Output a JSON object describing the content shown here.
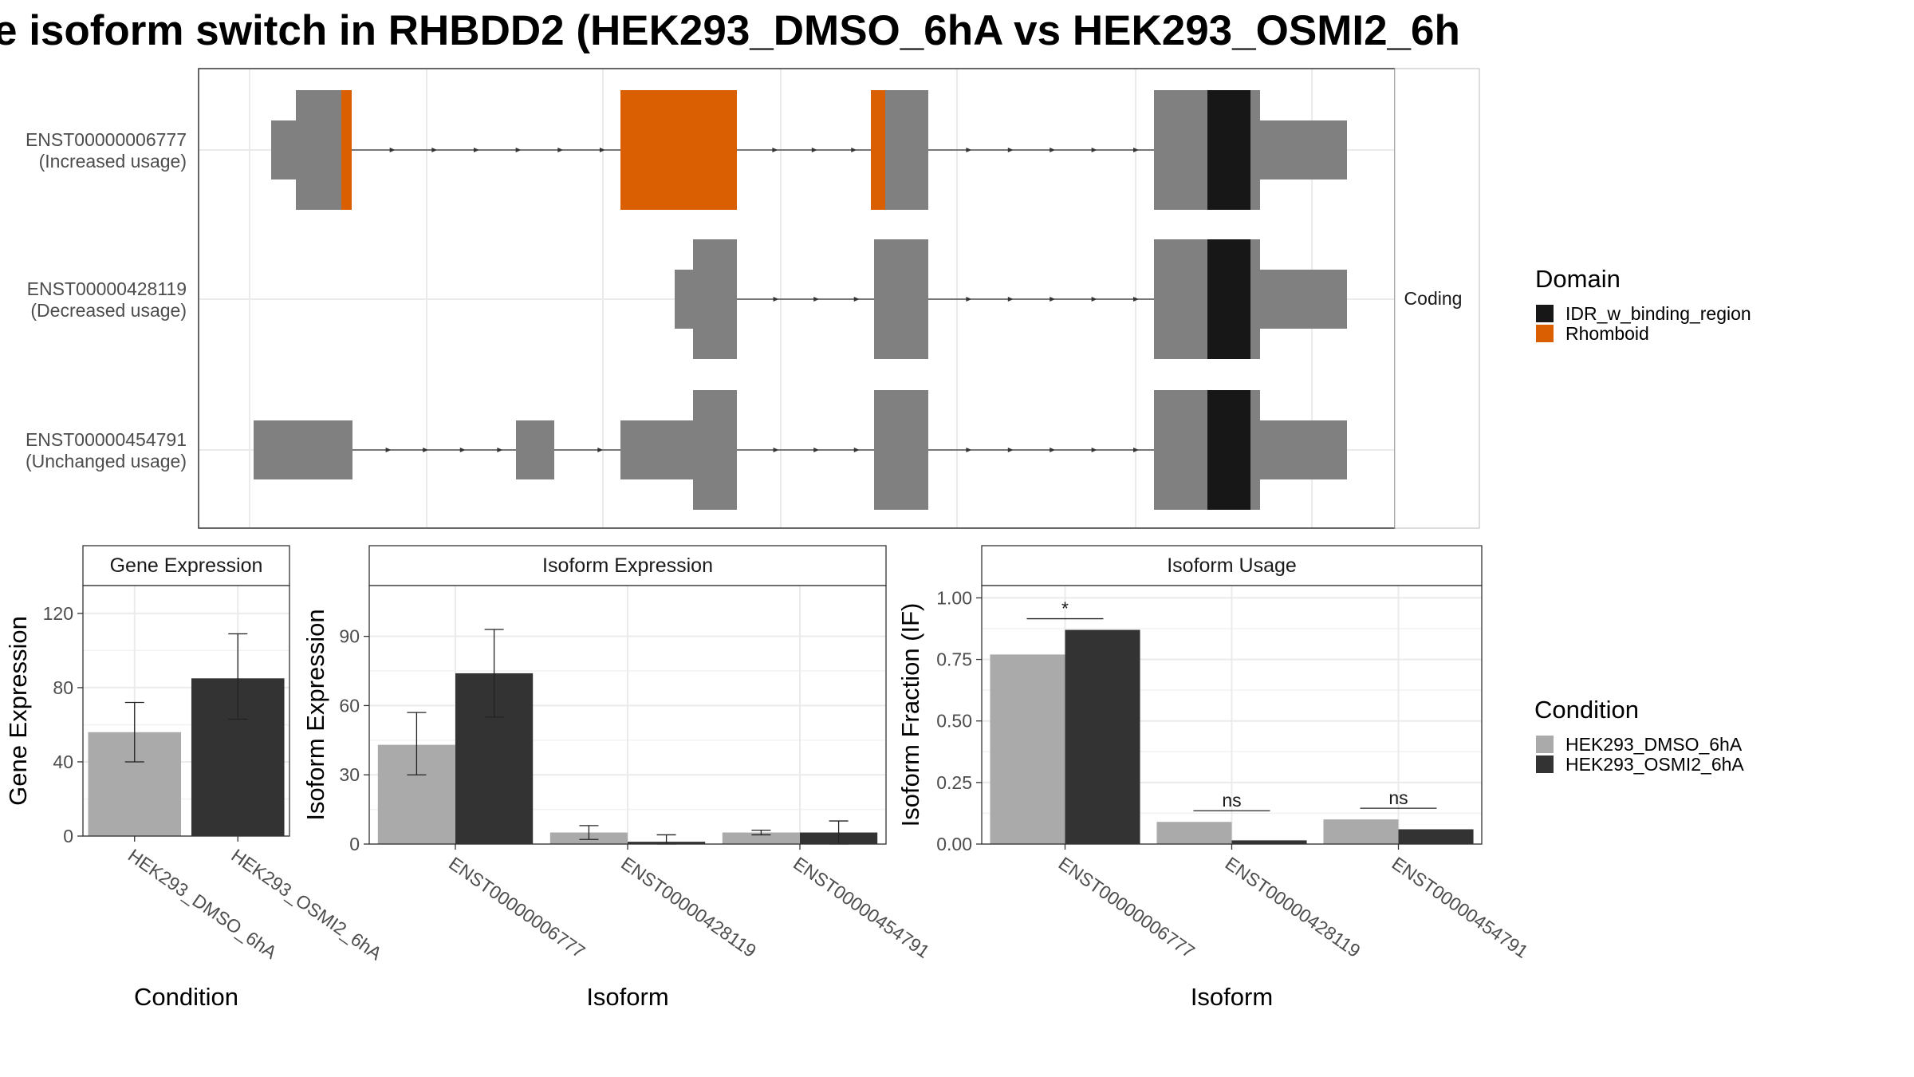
{
  "title": "e isoform switch in RHBDD2 (HEK293_DMSO_6hA vs HEK293_OSMI2_6h",
  "colors": {
    "exon": "#808080",
    "idr": "#171717",
    "rhomboid": "#d95f02",
    "dmso": "#aaaaaa",
    "osmi2": "#333333",
    "grid": "#ebebeb",
    "frame": "#333333"
  },
  "structure": {
    "strip_label": "Coding",
    "transcripts": [
      {
        "id": "ENST00000006777",
        "usage": "(Increased usage)"
      },
      {
        "id": "ENST00000428119",
        "usage": "(Decreased usage)"
      },
      {
        "id": "ENST00000454791",
        "usage": "(Unchanged usage)"
      }
    ]
  },
  "legends": {
    "domain": {
      "title": "Domain",
      "items": [
        {
          "label": "IDR_w_binding_region",
          "color": "#171717"
        },
        {
          "label": "Rhomboid",
          "color": "#d95f02"
        }
      ]
    },
    "condition": {
      "title": "Condition",
      "items": [
        {
          "label": "HEK293_DMSO_6hA",
          "color": "#aaaaaa"
        },
        {
          "label": "HEK293_OSMI2_6hA",
          "color": "#333333"
        }
      ]
    }
  },
  "chart_data": [
    {
      "type": "bar",
      "title": "Gene Expression",
      "xlabel": "Condition",
      "ylabel": "Gene Expression",
      "ylim": [
        0,
        135
      ],
      "yticks": [
        0,
        40,
        80,
        120
      ],
      "categories": [
        "HEK293_DMSO_6hA",
        "HEK293_OSMI2_6hA"
      ],
      "values": [
        56,
        85
      ],
      "err_low": [
        40,
        63
      ],
      "err_high": [
        72,
        109
      ]
    },
    {
      "type": "bar",
      "title": "Isoform Expression",
      "xlabel": "Isoform",
      "ylabel": "Isoform Expression",
      "ylim": [
        0,
        112
      ],
      "yticks": [
        0,
        30,
        60,
        90
      ],
      "categories": [
        "ENST00000006777",
        "ENST00000428119",
        "ENST00000454791"
      ],
      "series": [
        {
          "name": "HEK293_DMSO_6hA",
          "values": [
            43,
            5,
            5
          ],
          "err_low": [
            30,
            2,
            4
          ],
          "err_high": [
            57,
            8,
            6
          ]
        },
        {
          "name": "HEK293_OSMI2_6hA",
          "values": [
            74,
            1,
            5
          ],
          "err_low": [
            55,
            0,
            0
          ],
          "err_high": [
            93,
            4,
            10
          ]
        }
      ]
    },
    {
      "type": "bar",
      "title": "Isoform Usage",
      "xlabel": "Isoform",
      "ylabel": "Isoform Fraction (IF)",
      "ylim": [
        0,
        1.05
      ],
      "yticks": [
        "0.00",
        "0.25",
        "0.50",
        "0.75",
        "1.00"
      ],
      "categories": [
        "ENST00000006777",
        "ENST00000428119",
        "ENST00000454791"
      ],
      "series": [
        {
          "name": "HEK293_DMSO_6hA",
          "values": [
            0.77,
            0.09,
            0.1
          ]
        },
        {
          "name": "HEK293_OSMI2_6hA",
          "values": [
            0.87,
            0.015,
            0.06
          ]
        }
      ],
      "significance": [
        "*",
        "ns",
        "ns"
      ]
    }
  ]
}
